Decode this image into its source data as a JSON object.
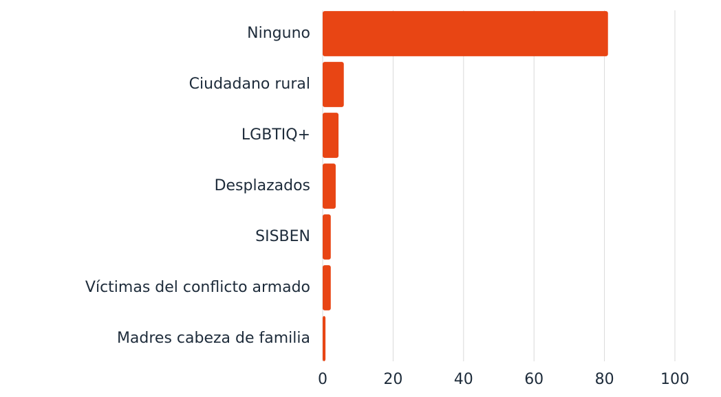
{
  "chart_data": {
    "type": "bar",
    "orientation": "horizontal",
    "categories": [
      "Ninguno",
      "Ciudadano rural",
      "LGBTIQ+",
      "Desplazados",
      "SISBEN",
      "Víctimas del conflicto armado",
      "Madres cabeza de familia"
    ],
    "values": [
      81,
      6,
      4.5,
      3.7,
      2.3,
      2.3,
      0.8
    ],
    "color": "#e84514",
    "xlim": [
      0,
      100
    ],
    "xticks": [
      0,
      20,
      40,
      60,
      80,
      100
    ],
    "grid": true
  }
}
